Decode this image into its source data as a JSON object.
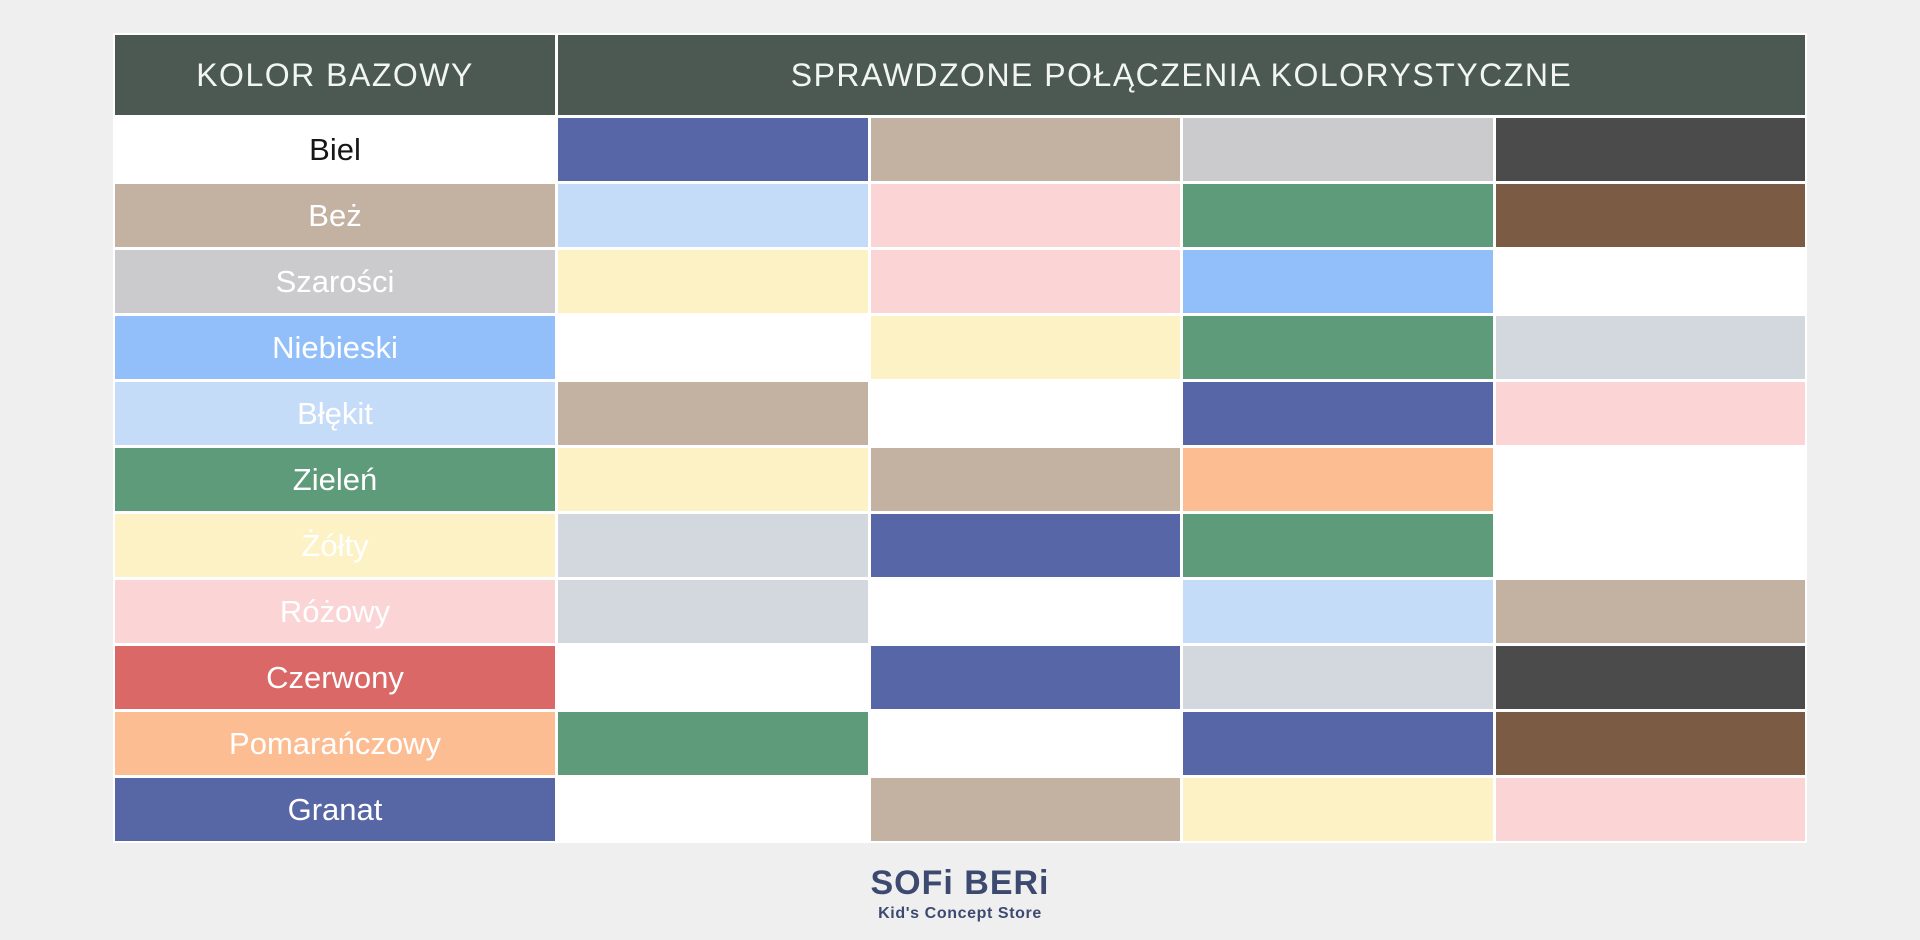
{
  "page": {
    "background": "#efeff0"
  },
  "chart_data": {
    "type": "table",
    "title": "SPRAWDZONE POŁĄCZENIA KOLORYSTYCZNE",
    "header": {
      "base_label": "KOLOR BAZOWY",
      "combos_label": "SPRAWDZONE POŁĄCZENIA KOLORYSTYCZNE",
      "bg": "#4c5952",
      "text_color": "#f2f6f2"
    },
    "rows": [
      {
        "label": "Biel",
        "bg": "#ffffff",
        "label_color": "#161616",
        "combos": [
          "#5766a6",
          "#c3b2a2",
          "#cbcacd",
          "#4b4b4b"
        ]
      },
      {
        "label": "Beż",
        "bg": "#c3b2a2",
        "label_color": "#ffffff",
        "combos": [
          "#c5dcf9",
          "#fbd5d5",
          "#5e9b7b",
          "#7c5b44"
        ]
      },
      {
        "label": "Szarości",
        "bg": "#cbcacd",
        "label_color": "#ffffff",
        "combos": [
          "#fdf2c5",
          "#fbd5d5",
          "#92bffa",
          "#ffffff"
        ]
      },
      {
        "label": "Niebieski",
        "bg": "#92bffa",
        "label_color": "#ffffff",
        "combos": [
          "#ffffff",
          "#fdf2c5",
          "#5e9b7b",
          "#d3d8de"
        ]
      },
      {
        "label": "Błękit",
        "bg": "#c5dcf9",
        "label_color": "#ffffff",
        "combos": [
          "#c3b2a2",
          "#ffffff",
          "#5766a6",
          "#fbd5d5"
        ]
      },
      {
        "label": "Zieleń",
        "bg": "#5e9b7b",
        "label_color": "#ffffff",
        "combos": [
          "#fdf2c5",
          "#c3b2a2",
          "#fcbd92",
          "#ffffff"
        ]
      },
      {
        "label": "Żółty",
        "bg": "#fdf2c5",
        "label_color": "#ffffff",
        "combos": [
          "#d3d8de",
          "#5766a6",
          "#5e9b7b",
          "#ffffff"
        ]
      },
      {
        "label": "Różowy",
        "bg": "#fbd5d5",
        "label_color": "#ffffff",
        "combos": [
          "#d3d8de",
          "#ffffff",
          "#c5dcf9",
          "#c3b2a2"
        ]
      },
      {
        "label": "Czerwony",
        "bg": "#d96866",
        "label_color": "#ffffff",
        "combos": [
          "#ffffff",
          "#5766a6",
          "#d3d8de",
          "#4b4b4b"
        ]
      },
      {
        "label": "Pomarańczowy",
        "bg": "#fcbd92",
        "label_color": "#ffffff",
        "combos": [
          "#5e9b7b",
          "#ffffff",
          "#5766a6",
          "#7c5b44"
        ]
      },
      {
        "label": "Granat",
        "bg": "#5766a4",
        "label_color": "#ffffff",
        "combos": [
          "#ffffff",
          "#c3b2a2",
          "#fdf2c5",
          "#fbd5d5"
        ]
      }
    ]
  },
  "footer": {
    "brand": "SOFi BERi",
    "tagline": "Kid's Concept Store",
    "color": "#3d4a70"
  }
}
